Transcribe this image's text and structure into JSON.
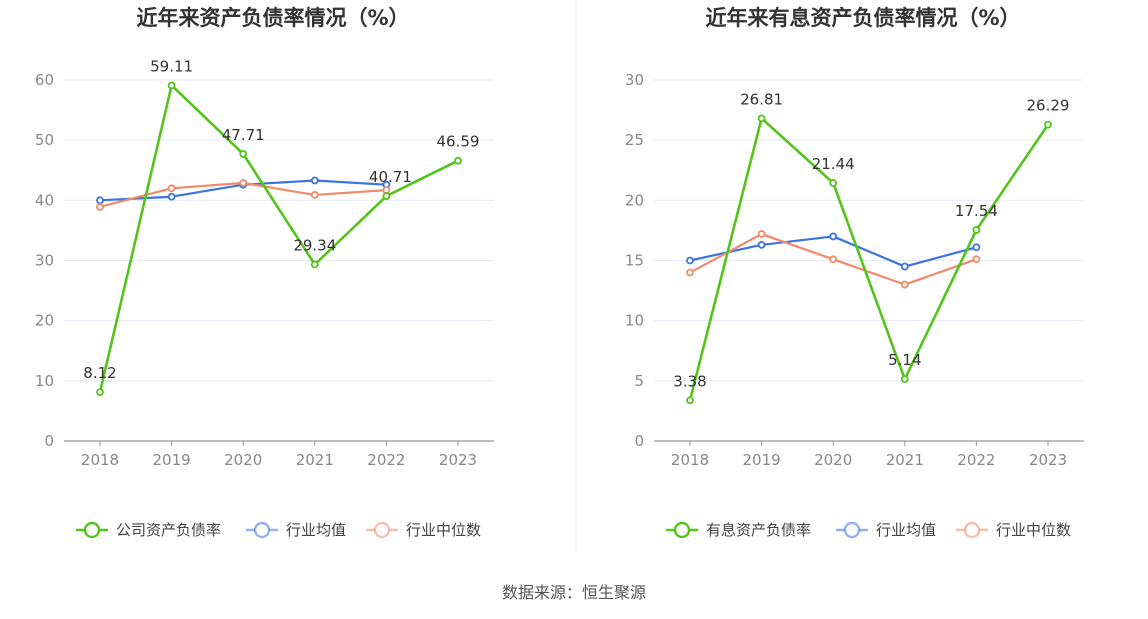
{
  "source": "数据来源：恒生聚源",
  "chart_data": [
    {
      "type": "line",
      "title": "近年来资产负债率情况（%）",
      "categories": [
        "2018",
        "2019",
        "2020",
        "2021",
        "2022",
        "2023"
      ],
      "ylim": [
        0,
        60
      ],
      "yticks": [
        0,
        10,
        20,
        30,
        40,
        50,
        60
      ],
      "ytick_labels": [
        "0",
        "10",
        "20",
        "30",
        "40",
        "50",
        "60"
      ],
      "series": [
        {
          "name": "公司资产负债率",
          "color": "#52c41a",
          "values": [
            8.12,
            59.11,
            47.71,
            29.34,
            40.71,
            46.59
          ],
          "labels": [
            "8.12",
            "59.11",
            "47.71",
            "29.34",
            "40.71",
            "46.59"
          ]
        },
        {
          "name": "行业均值",
          "color": "#3b73e0",
          "values": [
            40.0,
            40.6,
            42.6,
            43.3,
            42.6,
            null
          ]
        },
        {
          "name": "行业中位数",
          "color": "#f08a69",
          "values": [
            38.9,
            42.0,
            42.9,
            40.9,
            41.7,
            null
          ]
        }
      ]
    },
    {
      "type": "line",
      "title": "近年来有息资产负债率情况（%）",
      "categories": [
        "2018",
        "2019",
        "2020",
        "2021",
        "2022",
        "2023"
      ],
      "ylim": [
        0,
        30
      ],
      "yticks": [
        0,
        5,
        10,
        15,
        20,
        25,
        30
      ],
      "ytick_labels": [
        "0",
        "5",
        "10",
        "15",
        "20",
        "25",
        "30"
      ],
      "series": [
        {
          "name": "有息资产负债率",
          "color": "#52c41a",
          "values": [
            3.38,
            26.81,
            21.44,
            5.14,
            17.54,
            26.29
          ],
          "labels": [
            "3.38",
            "26.81",
            "21.44",
            "5.14",
            "17.54",
            "26.29"
          ]
        },
        {
          "name": "行业均值",
          "color": "#3b73e0",
          "values": [
            15.0,
            16.3,
            17.0,
            14.5,
            16.1,
            null
          ]
        },
        {
          "name": "行业中位数",
          "color": "#f08a69",
          "values": [
            14.0,
            17.2,
            15.1,
            13.0,
            15.1,
            null
          ]
        }
      ]
    }
  ]
}
